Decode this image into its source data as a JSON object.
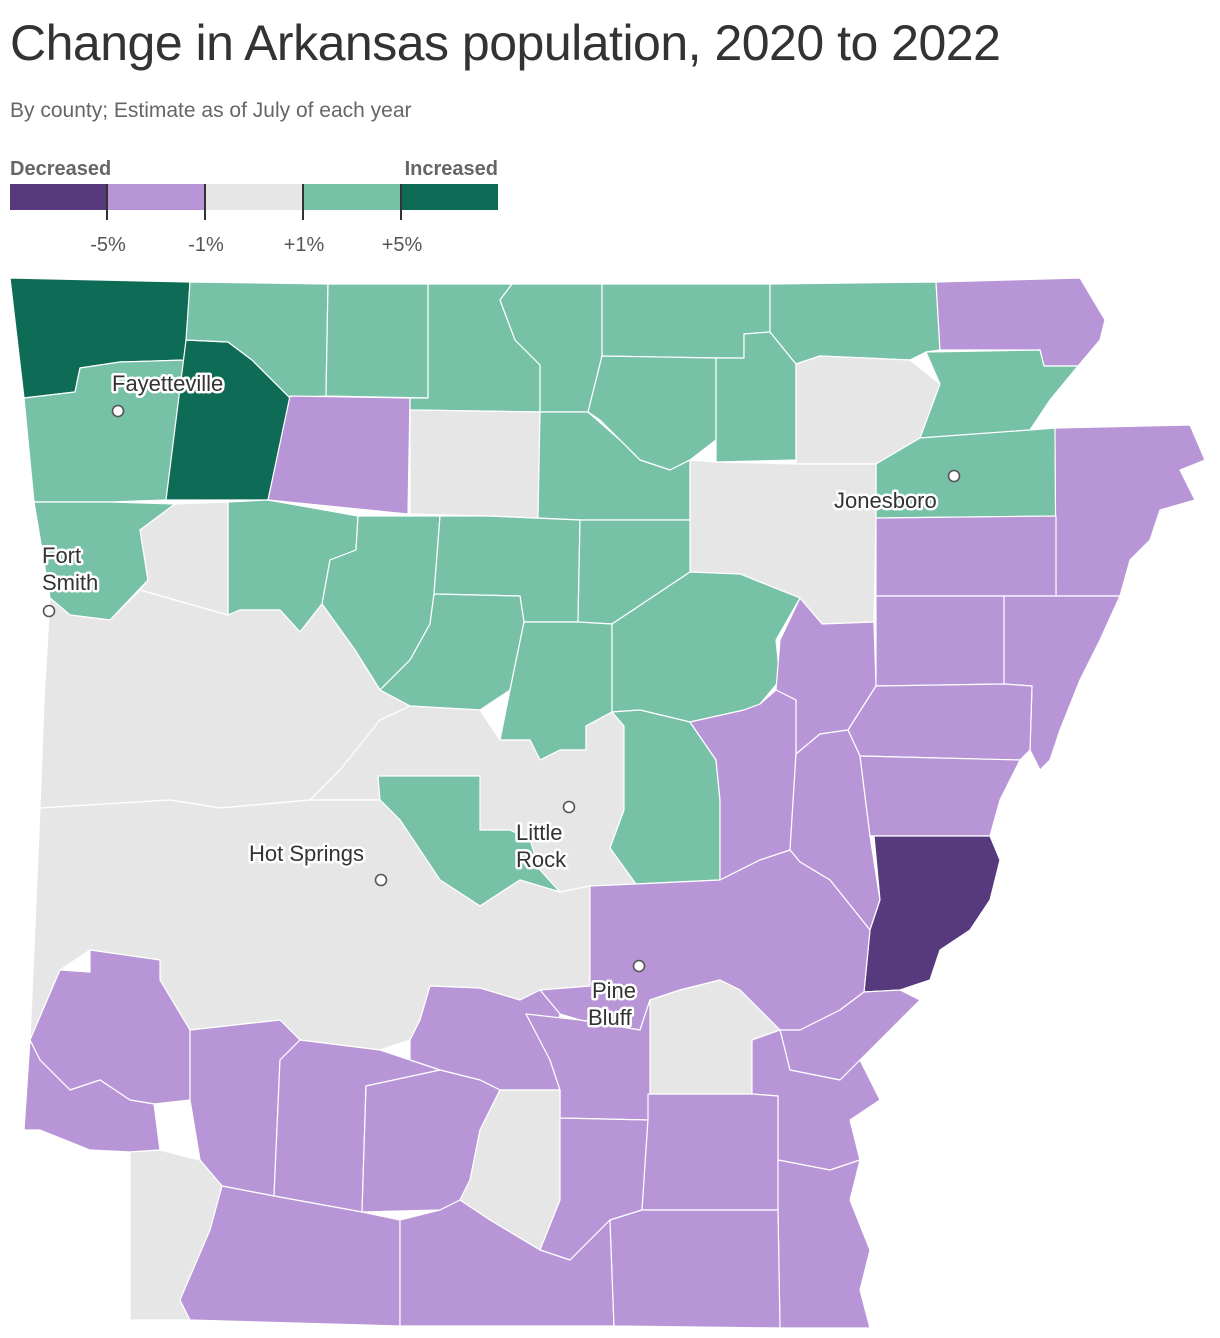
{
  "title": "Change in Arkansas population, 2020 to 2022",
  "subtitle": "By county; Estimate as of July of each year",
  "legend": {
    "left_label": "Decreased",
    "right_label": "Increased",
    "bins": [
      {
        "color": "#573a7e"
      },
      {
        "color": "#b895d7"
      },
      {
        "color": "#e6e6e6"
      },
      {
        "color": "#77c1a6"
      },
      {
        "color": "#0e6b55"
      }
    ],
    "ticks": [
      "-5%",
      "-1%",
      "+1%",
      "+5%"
    ]
  },
  "colors": {
    "strong_decrease": "#573a7e",
    "decrease": "#b895d7",
    "flat": "#e6e6e6",
    "increase": "#77c1a6",
    "strong_increase": "#0e6b55"
  },
  "cities": [
    {
      "name": "Fayetteville"
    },
    {
      "name": "Fort Smith"
    },
    {
      "name": "Jonesboro"
    },
    {
      "name": "Little Rock"
    },
    {
      "name": "Hot Springs"
    },
    {
      "name": "Pine Bluff"
    }
  ]
}
